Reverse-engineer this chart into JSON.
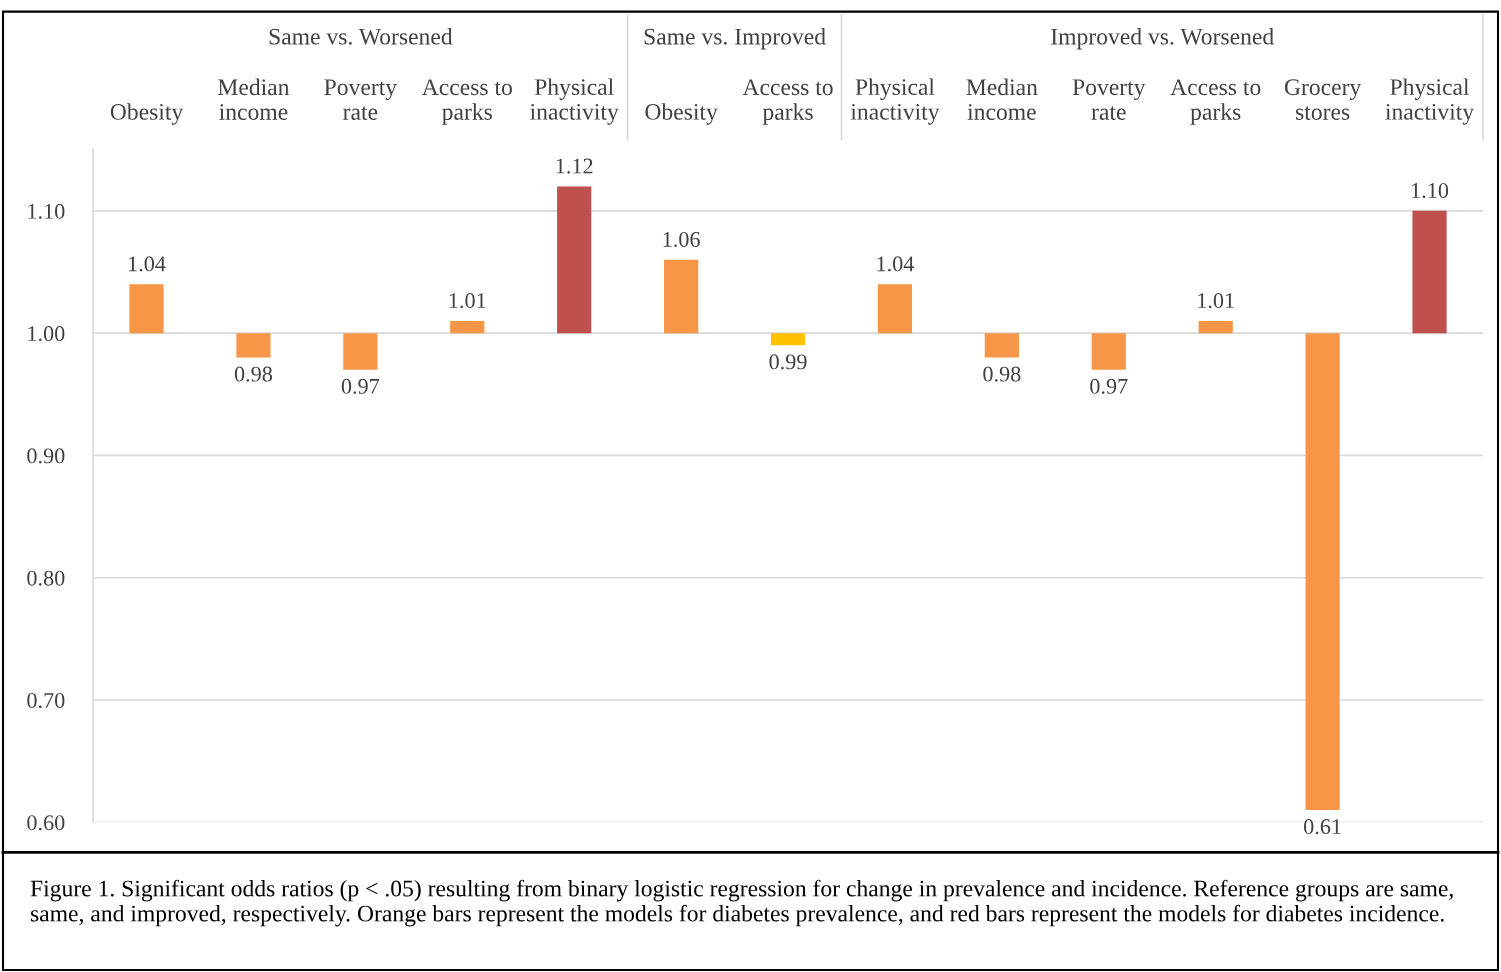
{
  "chart_data": {
    "type": "bar",
    "categories": [
      "Obesity",
      "Median\nincome",
      "Poverty\nrate",
      "Access to\nparks",
      "Physical\ninactivity",
      "Obesity",
      "Access to\nparks",
      "Physical\ninactivity",
      "Median\nincome",
      "Poverty\nrate",
      "Access to\nparks",
      "Grocery\nstores",
      "Physical\ninactivity"
    ],
    "base": [
      1.0,
      1.0,
      1.0,
      1.0,
      1.0,
      1.0,
      1.0,
      1.0,
      1.0,
      1.0,
      1.0,
      1.0,
      1.0
    ],
    "values": [
      0.04,
      -0.02,
      -0.03,
      0.01,
      0.12,
      0.06,
      -0.01,
      0.04,
      -0.02,
      -0.03,
      0.01,
      -0.39,
      0.1
    ],
    "value_labels": [
      "1.04",
      "0.98",
      "0.97",
      "1.01",
      "1.12",
      "1.06",
      "0.99",
      "1.04",
      "0.98",
      "0.97",
      "1.01",
      "0.61",
      "1.10"
    ],
    "colors": [
      "#f79646",
      "#f79646",
      "#f79646",
      "#f79646",
      "#c0504d",
      "#f79646",
      "#ffc000",
      "#f79646",
      "#f79646",
      "#f79646",
      "#f79646",
      "#f79646",
      "#c0504d"
    ],
    "ylim": [
      0.6,
      1.15
    ],
    "yticks": [
      {
        "value": 0.6,
        "label": "0.60"
      },
      {
        "value": 0.7,
        "label": "0.70"
      },
      {
        "value": 0.8,
        "label": "0.80"
      },
      {
        "value": 0.9,
        "label": "0.90"
      },
      {
        "value": 1.0,
        "label": "1.00"
      },
      {
        "value": 1.1,
        "label": "1.10"
      }
    ],
    "grid": "y",
    "annotations": [
      "Same vs. Worsened",
      "Same vs. Improved",
      "Improved vs. Worsened",
      "Figure 1. Significant odds ratios (p < .05) resulting from binary logistic regression for change in prevalence and incidence. Reference groups are same, same, and improved, respectively. Orange bars represent the models for diabetes prevalence, and red bars represent the models for diabetes incidence."
    ]
  }
}
